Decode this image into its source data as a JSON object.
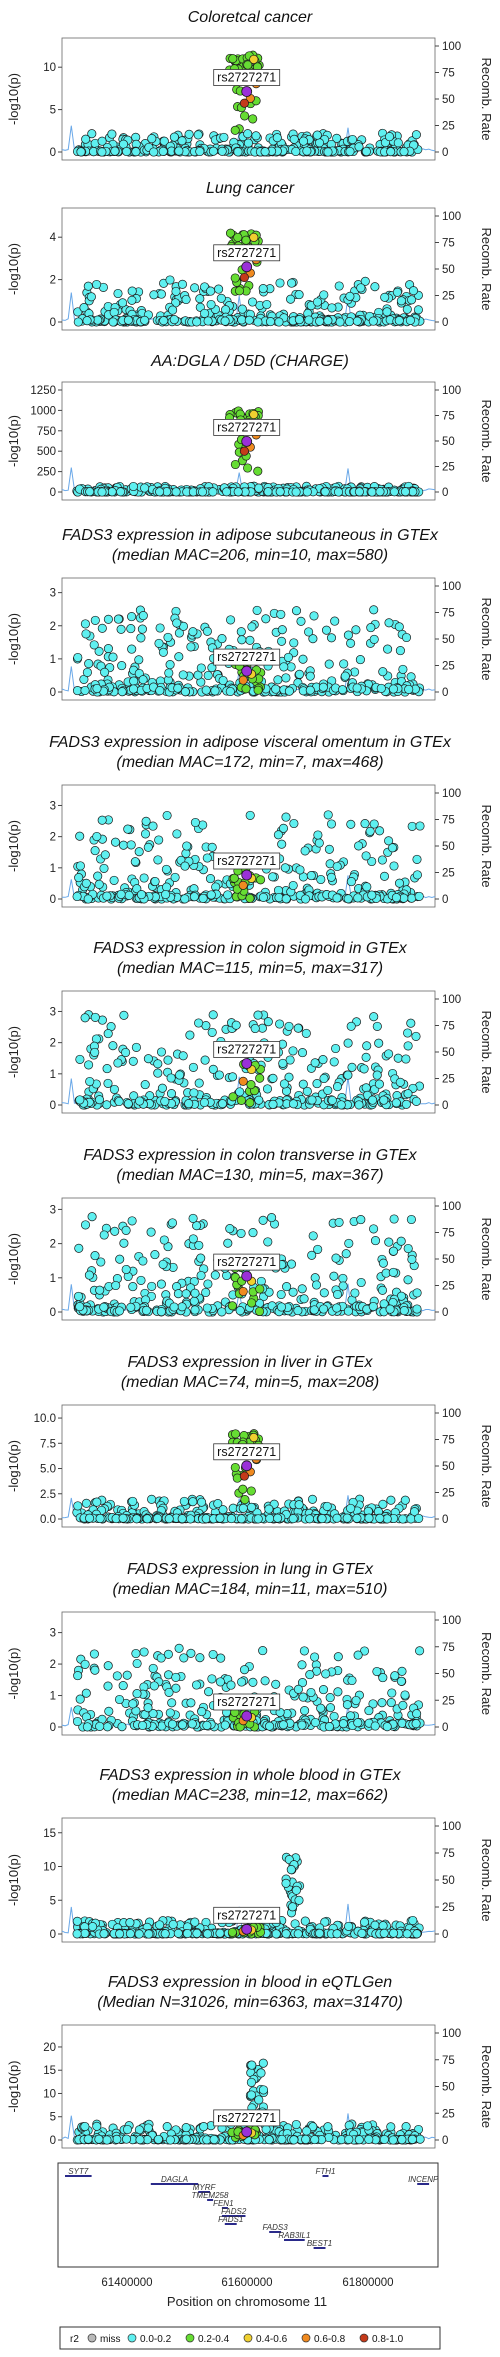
{
  "rsid": "rs2727271",
  "y_axis_label_left": "-log10(p)",
  "y_axis_label_right": "Recomb. Rate",
  "xlabel": "Position on chromosome 11",
  "x_ticks": [
    "61400000",
    "61600000",
    "61800000"
  ],
  "legend": {
    "title": "r2",
    "items": [
      {
        "label": "miss",
        "color": "#b9b9b9"
      },
      {
        "label": "0.0-0.2",
        "color": "#5ef0f0"
      },
      {
        "label": "0.2-0.4",
        "color": "#66dd33"
      },
      {
        "label": "0.4-0.6",
        "color": "#f0d030"
      },
      {
        "label": "0.6-0.8",
        "color": "#f08a20"
      },
      {
        "label": "0.8-1.0",
        "color": "#c43a1a"
      }
    ]
  },
  "colors": {
    "lead_snp": "#9a30d8",
    "recomb_line": "#6aa8e8"
  },
  "recomb_ticks": [
    "0",
    "25",
    "50",
    "75",
    "100"
  ],
  "chart_data": [
    {
      "type": "scatter",
      "title_lines": [
        "Coloretcal cancer"
      ],
      "ylim": [
        0,
        12.5
      ],
      "yticks": [
        "0",
        "5",
        "10"
      ],
      "peak": 11.5,
      "hot": "green",
      "bg_max": 2.2
    },
    {
      "type": "scatter",
      "title_lines": [
        "Lung cancer"
      ],
      "ylim": [
        0,
        5
      ],
      "yticks": [
        "0",
        "2",
        "4"
      ],
      "peak": 4.2,
      "hot": "green",
      "bg_max": 2.0
    },
    {
      "type": "scatter",
      "title_lines": [
        "AA:DGLA / D5D (CHARGE)"
      ],
      "ylim": [
        0,
        1250
      ],
      "yticks": [
        "0",
        "250",
        "500",
        "750",
        "1000",
        "1250"
      ],
      "peak": 1000,
      "hot": "green",
      "bg_max": 70
    },
    {
      "type": "scatter",
      "title_lines": [
        "FADS3 expression in adipose subcutaneous in GTEx",
        "(median MAC=206, min=10, max=580)"
      ],
      "ylim": [
        0,
        3.2
      ],
      "yticks": [
        "0",
        "1",
        "2",
        "3"
      ],
      "peak": 0.9,
      "hot": "low",
      "bg_max": 2.5
    },
    {
      "type": "scatter",
      "title_lines": [
        "FADS3 expression in adipose visceral omentum in GTEx",
        "(median MAC=172, min=7, max=468)"
      ],
      "ylim": [
        0,
        3.4
      ],
      "yticks": [
        "0",
        "1",
        "2",
        "3"
      ],
      "peak": 1.1,
      "hot": "low",
      "bg_max": 2.7
    },
    {
      "type": "scatter",
      "title_lines": [
        "FADS3 expression in colon sigmoid in GTEx",
        "(median MAC=115, min=5, max=317)"
      ],
      "ylim": [
        0,
        3.4
      ],
      "yticks": [
        "0",
        "1",
        "2",
        "3"
      ],
      "peak": 1.9,
      "hot": "low",
      "bg_max": 2.9
    },
    {
      "type": "scatter",
      "title_lines": [
        "FADS3 expression in colon transverse in GTEx",
        "(median MAC=130, min=5, max=367)"
      ],
      "ylim": [
        0,
        3.1
      ],
      "yticks": [
        "0",
        "1",
        "2",
        "3"
      ],
      "peak": 1.5,
      "hot": "low",
      "bg_max": 2.8
    },
    {
      "type": "scatter",
      "title_lines": [
        "FADS3 expression in liver in GTEx",
        "(median MAC=74, min=5, max=208)"
      ],
      "ylim": [
        0,
        10.5
      ],
      "yticks": [
        "0.0",
        "2.5",
        "5.0",
        "7.5",
        "10.0"
      ],
      "peak": 8.5,
      "hot": "green",
      "bg_max": 2.0
    },
    {
      "type": "scatter",
      "title_lines": [
        "FADS3 expression in lung in GTEx",
        "(median MAC=184, min=11, max=510)"
      ],
      "ylim": [
        0,
        3.4
      ],
      "yticks": [
        "0",
        "1",
        "2",
        "3"
      ],
      "peak": 0.5,
      "hot": "low",
      "bg_max": 2.5
    },
    {
      "type": "scatter",
      "title_lines": [
        "FADS3 expression in whole blood in GTEx",
        "(median MAC=238, min=12, max=662)"
      ],
      "ylim": [
        0,
        16
      ],
      "yticks": [
        "0",
        "5",
        "10",
        "15"
      ],
      "peak": 1.0,
      "hot": "low",
      "bg_max": 2.0,
      "spike": {
        "x": 61680000,
        "max": 12
      }
    },
    {
      "type": "scatter",
      "title_lines": [
        "FADS3 expression in blood in eQTLGen",
        "(Median N=31026, min=6363, max=31470)"
      ],
      "ylim": [
        0,
        23
      ],
      "yticks": [
        "0",
        "5",
        "10",
        "15",
        "20"
      ],
      "peak": 2.5,
      "hot": "low",
      "bg_max": 3.5,
      "spike": {
        "x": 61620000,
        "max": 18
      }
    }
  ],
  "x_range": [
    61290000,
    61920000
  ],
  "genes": [
    {
      "name": "SYT7",
      "start": 61295000,
      "end": 61340000,
      "row": 0
    },
    {
      "name": "DAGLA",
      "start": 61440000,
      "end": 61520000,
      "row": 1
    },
    {
      "name": "FTH1",
      "start": 61730000,
      "end": 61740000,
      "row": 0
    },
    {
      "name": "INCENP",
      "start": 61890000,
      "end": 61910000,
      "row": 1
    },
    {
      "name": "MYRF",
      "start": 61520000,
      "end": 61540000,
      "row": 2
    },
    {
      "name": "TMEM258",
      "start": 61535000,
      "end": 61545000,
      "row": 3
    },
    {
      "name": "FEN1",
      "start": 61560000,
      "end": 61565000,
      "row": 4
    },
    {
      "name": "FADS2",
      "start": 61560000,
      "end": 61600000,
      "row": 5
    },
    {
      "name": "FADS1",
      "start": 61565000,
      "end": 61585000,
      "row": 6
    },
    {
      "name": "FADS3",
      "start": 61640000,
      "end": 61660000,
      "row": 7
    },
    {
      "name": "RAB3IL1",
      "start": 61665000,
      "end": 61700000,
      "row": 8
    },
    {
      "name": "BEST1",
      "start": 61715000,
      "end": 61735000,
      "row": 9
    }
  ]
}
